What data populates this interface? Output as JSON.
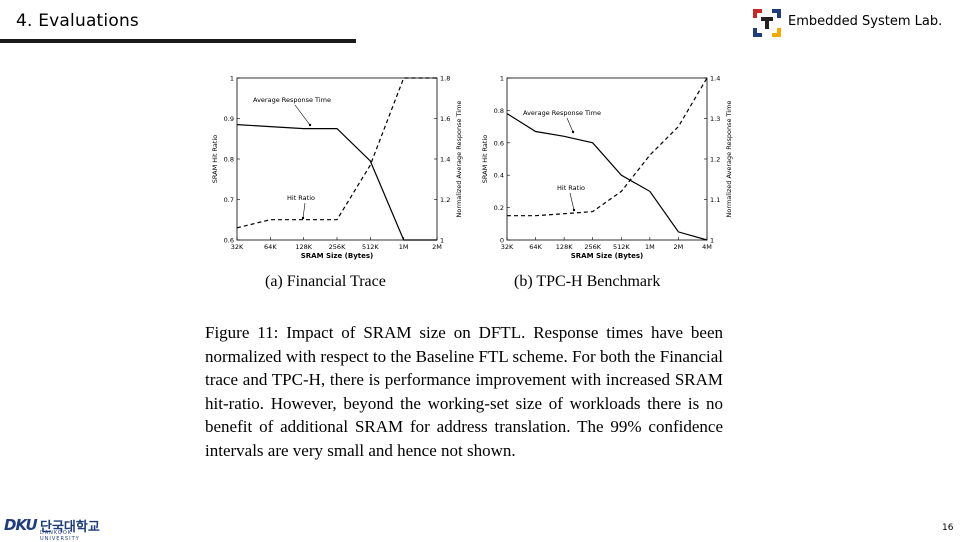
{
  "header": {
    "title": "4. Evaluations",
    "lab_name": "Embedded System Lab.",
    "rule_color": "#1a1a1a"
  },
  "logos": {
    "lab_logo_icon": "embedded-system-lab-logo-icon",
    "university_logo": {
      "mark": "DKU",
      "korean": "단국대학교",
      "english": "DANKOOK UNIVERSITY"
    }
  },
  "figure": {
    "subcaption_a": "(a) Financial Trace",
    "subcaption_b": "(b) TPC-H Benchmark",
    "caption": "Figure 11: Impact of SRAM size on DFTL. Response times have been normalized with respect to the Baseline FTL scheme. For both the Financial trace and TPC-H, there is performance improvement with increased SRAM hit-ratio. However, beyond the working-set size of workloads there is no benefit of additional SRAM for address translation. The 99% confidence intervals are very small and hence not shown."
  },
  "chart_data": [
    {
      "type": "line",
      "xlabel": "SRAM Size (Bytes)",
      "ylabel": "SRAM Hit Ratio",
      "y2label": "Normalized Average Response Time",
      "categories": [
        "32K",
        "64K",
        "128K",
        "256K",
        "512K",
        "1M",
        "2M"
      ],
      "ylim": [
        0.6,
        1
      ],
      "yticks": [
        "0.6",
        "0.7",
        "0.8",
        "0.9",
        "1"
      ],
      "y2lim": [
        1,
        1.8
      ],
      "y2ticks": [
        "1",
        "1.2",
        "1.4",
        "1.6",
        "1.8"
      ],
      "series": [
        {
          "name": "Average Response Time",
          "axis": "y",
          "style": "solid",
          "values": [
            0.885,
            0.88,
            0.875,
            0.875,
            0.795,
            0.6,
            0.6
          ]
        },
        {
          "name": "Hit Ratio",
          "axis": "y2",
          "style": "dashed",
          "values": [
            1.06,
            1.1,
            1.1,
            1.1,
            1.37,
            1.8,
            1.8
          ]
        }
      ],
      "annotations": [
        "Average Response Time",
        "Hit Ratio"
      ]
    },
    {
      "type": "line",
      "xlabel": "SRAM Size (Bytes)",
      "ylabel": "SRAM Hit Ratio",
      "y2label": "Normalized Average Response Time",
      "categories": [
        "32K",
        "64K",
        "128K",
        "256K",
        "512K",
        "1M",
        "2M",
        "4M"
      ],
      "ylim": [
        0,
        1
      ],
      "yticks": [
        "0",
        "0.2",
        "0.4",
        "0.6",
        "0.8",
        "1"
      ],
      "y2lim": [
        1,
        1.4
      ],
      "y2ticks": [
        "1",
        "1.1",
        "1.2",
        "1.3",
        "1.4"
      ],
      "series": [
        {
          "name": "Average Response Time",
          "axis": "y",
          "style": "solid",
          "values": [
            0.78,
            0.67,
            0.64,
            0.6,
            0.4,
            0.3,
            0.05,
            0.0
          ]
        },
        {
          "name": "Hit Ratio",
          "axis": "y2",
          "style": "dashed",
          "values": [
            1.06,
            1.06,
            1.065,
            1.07,
            1.12,
            1.21,
            1.28,
            1.4
          ]
        }
      ],
      "annotations": [
        "Average Response Time",
        "Hit Ratio"
      ]
    }
  ],
  "page": {
    "number": "16"
  }
}
